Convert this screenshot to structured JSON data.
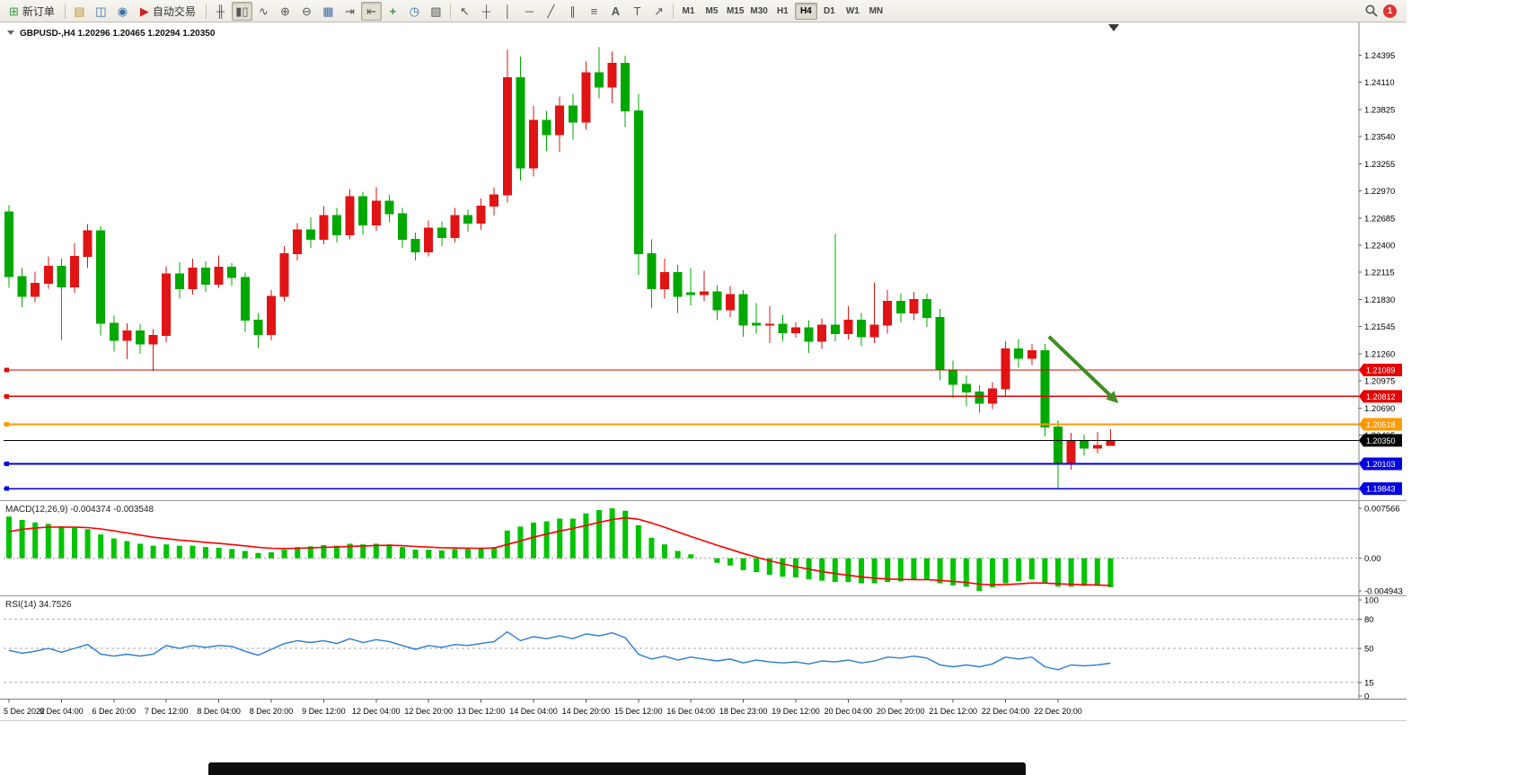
{
  "toolbar": {
    "new_order": "新订单",
    "autotrade": "自动交易",
    "timeframes": [
      "M1",
      "M5",
      "M15",
      "M30",
      "H1",
      "H4",
      "D1",
      "W1",
      "MN"
    ],
    "active_timeframe": "H4",
    "notification_count": "1",
    "icons": {
      "new_order": "⊞",
      "market_watch": "▤",
      "data_window": "◫",
      "navigator": "◉",
      "autotrade": "▶",
      "bar_chart": "╫",
      "candle_chart": "▮▯",
      "line_chart": "∿",
      "zoom_in": "⊕",
      "zoom_out": "⊖",
      "tile_windows": "▦",
      "auto_scroll": "⇥",
      "chart_shift": "⇤",
      "indicators": "+",
      "periods": "◷",
      "templates": "▧",
      "cursor": "↖",
      "crosshair": "┼",
      "vline": "│",
      "hline": "─",
      "trendline": "╱",
      "channel": "∥",
      "fibonacci": "≡",
      "text": "A",
      "label": "T",
      "arrows": "↗"
    }
  },
  "chart_data": {
    "type": "candlestick",
    "symbol_period": "GBPUSD-,H4",
    "ohlc_text": "1.20296 1.20465 1.20294 1.20350",
    "current": {
      "open": 1.20296,
      "high": 1.20465,
      "low": 1.20294,
      "close": 1.2035
    },
    "colors": {
      "bull": "#e01414",
      "bear": "#00a800",
      "macd_hist": "#00c400",
      "macd_signal": "#ff0000",
      "rsi": "#2b7bd4",
      "arrow": "#3e8e23",
      "line_red": "#e60000",
      "line_orange": "#ff9a00",
      "line_blue": "#0000e0",
      "line_black": "#000000"
    },
    "price_axis_labels": [
      "1.24395",
      "1.24110",
      "1.23825",
      "1.23540",
      "1.23255",
      "1.22970",
      "1.22685",
      "1.22400",
      "1.22115",
      "1.21830",
      "1.21545",
      "1.21260",
      "1.20975",
      "1.20690",
      "1.20405",
      "1.20120",
      "1.19835"
    ],
    "h_lines": [
      {
        "price": 1.21089,
        "label": "1.21089",
        "color": "#e60000",
        "width": 1.4,
        "handle": true
      },
      {
        "price": 1.20812,
        "label": "1.20812",
        "color": "#e60000",
        "width": 1.4,
        "handle": true
      },
      {
        "price": 1.20518,
        "label": "1.20518",
        "color": "#ff9a00",
        "width": 2.4,
        "handle": true
      },
      {
        "price": 1.2035,
        "label": "1.20350",
        "color": "#000000",
        "width": 1,
        "handle": false
      },
      {
        "price": 1.20103,
        "label": "1.20103",
        "color": "#0000e0",
        "width": 1.6,
        "handle": true
      },
      {
        "price": 1.19843,
        "label": "1.19843",
        "color": "#0000e0",
        "width": 1.6,
        "handle": true
      }
    ],
    "x_labels": [
      "5 Dec 2022",
      "6 Dec 04:00",
      "6 Dec 20:00",
      "7 Dec 12:00",
      "8 Dec 04:00",
      "8 Dec 20:00",
      "9 Dec 12:00",
      "12 Dec 04:00",
      "12 Dec 20:00",
      "13 Dec 12:00",
      "14 Dec 04:00",
      "14 Dec 20:00",
      "15 Dec 12:00",
      "16 Dec 04:00",
      "18 Dec 23:00",
      "19 Dec 12:00",
      "20 Dec 04:00",
      "20 Dec 20:00",
      "21 Dec 12:00",
      "22 Dec 04:00",
      "22 Dec 20:00"
    ],
    "x_label_step": 4,
    "candles": [
      [
        1.2275,
        1.2282,
        1.2195,
        1.2207
      ],
      [
        1.2207,
        1.2216,
        1.2175,
        1.2186
      ],
      [
        1.2186,
        1.2212,
        1.218,
        1.22
      ],
      [
        1.22,
        1.2228,
        1.2194,
        1.2218
      ],
      [
        1.2218,
        1.2226,
        1.214,
        1.2196
      ],
      [
        1.2196,
        1.2242,
        1.219,
        1.2228
      ],
      [
        1.2228,
        1.2262,
        1.2216,
        1.2255
      ],
      [
        1.2255,
        1.226,
        1.2145,
        1.2158
      ],
      [
        1.2158,
        1.2166,
        1.2128,
        1.214
      ],
      [
        1.214,
        1.2158,
        1.212,
        1.215
      ],
      [
        1.215,
        1.2157,
        1.2126,
        1.2136
      ],
      [
        1.2136,
        1.2152,
        1.2108,
        1.2145
      ],
      [
        1.2145,
        1.2218,
        1.2138,
        1.221
      ],
      [
        1.221,
        1.2222,
        1.2184,
        1.2194
      ],
      [
        1.2194,
        1.2226,
        1.2188,
        1.2216
      ],
      [
        1.2216,
        1.2223,
        1.2191,
        1.2199
      ],
      [
        1.2199,
        1.2229,
        1.2195,
        1.2217
      ],
      [
        1.2217,
        1.2221,
        1.2197,
        1.2206
      ],
      [
        1.2206,
        1.2211,
        1.2149,
        1.2161
      ],
      [
        1.2161,
        1.2169,
        1.2132,
        1.2146
      ],
      [
        1.2146,
        1.2193,
        1.214,
        1.2186
      ],
      [
        1.2186,
        1.2239,
        1.2181,
        1.2231
      ],
      [
        1.2231,
        1.2263,
        1.2224,
        1.2256
      ],
      [
        1.2256,
        1.2269,
        1.2237,
        1.2246
      ],
      [
        1.2246,
        1.2281,
        1.2241,
        1.2271
      ],
      [
        1.2271,
        1.2279,
        1.2243,
        1.2251
      ],
      [
        1.2251,
        1.2299,
        1.2246,
        1.2291
      ],
      [
        1.2291,
        1.2296,
        1.2251,
        1.2261
      ],
      [
        1.2261,
        1.2301,
        1.2255,
        1.2286
      ],
      [
        1.2286,
        1.2293,
        1.2264,
        1.2273
      ],
      [
        1.2273,
        1.2279,
        1.2237,
        1.2246
      ],
      [
        1.2246,
        1.2253,
        1.2224,
        1.2233
      ],
      [
        1.2233,
        1.2266,
        1.2228,
        1.2258
      ],
      [
        1.2258,
        1.2265,
        1.2239,
        1.2248
      ],
      [
        1.2248,
        1.2279,
        1.2243,
        1.2271
      ],
      [
        1.2271,
        1.2277,
        1.2254,
        1.2263
      ],
      [
        1.2263,
        1.2289,
        1.2256,
        1.2281
      ],
      [
        1.2281,
        1.2301,
        1.2271,
        1.2293
      ],
      [
        1.2293,
        1.2445,
        1.2285,
        1.2416
      ],
      [
        1.2416,
        1.2438,
        1.2308,
        1.2321
      ],
      [
        1.2321,
        1.2386,
        1.2312,
        1.2371
      ],
      [
        1.2371,
        1.2381,
        1.2339,
        1.2356
      ],
      [
        1.2356,
        1.2396,
        1.2338,
        1.2386
      ],
      [
        1.2386,
        1.2399,
        1.2351,
        1.2369
      ],
      [
        1.2369,
        1.2433,
        1.2361,
        1.2421
      ],
      [
        1.2421,
        1.2448,
        1.2394,
        1.2406
      ],
      [
        1.2406,
        1.2443,
        1.2389,
        1.2431
      ],
      [
        1.2431,
        1.2439,
        1.2364,
        1.2381
      ],
      [
        1.2381,
        1.2399,
        1.2209,
        1.2231
      ],
      [
        1.2231,
        1.2246,
        1.2174,
        1.2194
      ],
      [
        1.2194,
        1.2226,
        1.2184,
        1.2211
      ],
      [
        1.2211,
        1.2219,
        1.2169,
        1.2186
      ],
      [
        1.219,
        1.2216,
        1.2177,
        1.2188
      ],
      [
        1.2188,
        1.2213,
        1.2181,
        1.2191
      ],
      [
        1.2191,
        1.2198,
        1.2161,
        1.2172
      ],
      [
        1.2172,
        1.2197,
        1.2164,
        1.2188
      ],
      [
        1.2188,
        1.2193,
        1.2144,
        1.2156
      ],
      [
        1.2158,
        1.2179,
        1.2147,
        1.2156
      ],
      [
        1.2156,
        1.2176,
        1.2137,
        1.2157
      ],
      [
        1.2157,
        1.2167,
        1.2139,
        1.2148
      ],
      [
        1.2148,
        1.2159,
        1.2143,
        1.2153
      ],
      [
        1.2153,
        1.2161,
        1.2127,
        1.2139
      ],
      [
        1.2139,
        1.2163,
        1.2131,
        1.2156
      ],
      [
        1.2156,
        1.2252,
        1.2139,
        1.2147
      ],
      [
        1.2147,
        1.2176,
        1.2141,
        1.2161
      ],
      [
        1.2161,
        1.2169,
        1.2134,
        1.2144
      ],
      [
        1.2144,
        1.2201,
        1.2137,
        1.2156
      ],
      [
        1.2156,
        1.2193,
        1.2147,
        1.2181
      ],
      [
        1.2181,
        1.2189,
        1.2159,
        1.2169
      ],
      [
        1.2169,
        1.2191,
        1.2161,
        1.2183
      ],
      [
        1.2183,
        1.2189,
        1.2154,
        1.2164
      ],
      [
        1.2164,
        1.2173,
        1.2098,
        1.2109
      ],
      [
        1.2109,
        1.2119,
        1.2079,
        1.2094
      ],
      [
        1.2094,
        1.2103,
        1.2071,
        1.2086
      ],
      [
        1.2086,
        1.2093,
        1.2064,
        1.2074
      ],
      [
        1.2074,
        1.2096,
        1.2068,
        1.2089
      ],
      [
        1.2089,
        1.2139,
        1.2081,
        1.2131
      ],
      [
        1.2131,
        1.2141,
        1.2111,
        1.2121
      ],
      [
        1.2121,
        1.2136,
        1.2114,
        1.2129
      ],
      [
        1.2129,
        1.2136,
        1.2039,
        1.2049
      ],
      [
        1.2049,
        1.2056,
        1.1984,
        1.2011
      ],
      [
        1.2011,
        1.2043,
        1.2004,
        1.2035
      ],
      [
        1.2035,
        1.2041,
        1.2019,
        1.2027
      ],
      [
        1.2027,
        1.2044,
        1.2021,
        1.20296
      ],
      [
        1.20296,
        1.20465,
        1.20294,
        1.2035
      ]
    ],
    "arrow": {
      "from_index": 79.3,
      "from_price": 1.2144,
      "to_index": 84.6,
      "to_price": 1.2074,
      "color": "#3e8e23"
    },
    "macd": {
      "label": "MACD(12,26,9)",
      "value1": "-0.004374",
      "value2": "-0.003548",
      "axis": [
        "0.007566",
        "0.00",
        "-0.004943"
      ],
      "max": 0.007566,
      "min": -0.004943,
      "histogram": [
        0.0063,
        0.0058,
        0.0054,
        0.0052,
        0.0048,
        0.0046,
        0.0044,
        0.0036,
        0.003,
        0.0026,
        0.0022,
        0.0019,
        0.0021,
        0.0019,
        0.0019,
        0.0017,
        0.0016,
        0.0014,
        0.0011,
        0.0008,
        0.0009,
        0.0013,
        0.0017,
        0.0018,
        0.002,
        0.0019,
        0.0022,
        0.0021,
        0.0022,
        0.0021,
        0.0017,
        0.0013,
        0.0013,
        0.0012,
        0.0014,
        0.0014,
        0.0015,
        0.0017,
        0.0042,
        0.0048,
        0.0054,
        0.0056,
        0.006,
        0.006,
        0.0068,
        0.0073,
        0.007566,
        0.0072,
        0.005,
        0.0031,
        0.0021,
        0.0011,
        0.0006,
        0,
        -0.0007,
        -0.0011,
        -0.0018,
        -0.0021,
        -0.0025,
        -0.0028,
        -0.0029,
        -0.0032,
        -0.0034,
        -0.0036,
        -0.0036,
        -0.0038,
        -0.0038,
        -0.0036,
        -0.0035,
        -0.0033,
        -0.0033,
        -0.0038,
        -0.0041,
        -0.0043,
        -0.004943,
        -0.0044,
        -0.0038,
        -0.0035,
        -0.0032,
        -0.0038,
        -0.0043,
        -0.0043,
        -0.0042,
        -0.0042,
        -0.004374
      ]
    },
    "rsi": {
      "label": "RSI(14)",
      "value": "34.7526",
      "axis": [
        "100",
        "80",
        "50",
        "15",
        "0"
      ],
      "levels": [
        80,
        50,
        15
      ],
      "values": [
        48,
        45,
        47,
        50,
        46,
        50,
        54,
        44,
        42,
        44,
        42,
        44,
        53,
        50,
        53,
        51,
        53,
        52,
        47,
        43,
        49,
        55,
        58,
        56,
        58,
        55,
        60,
        56,
        59,
        57,
        53,
        49,
        53,
        51,
        54,
        53,
        55,
        57,
        67,
        58,
        62,
        60,
        63,
        60,
        65,
        63,
        66,
        61,
        44,
        39,
        42,
        38,
        41,
        39,
        37,
        39,
        35,
        38,
        36,
        35,
        36,
        34,
        37,
        36,
        38,
        35,
        37,
        41,
        40,
        42,
        40,
        33,
        31,
        33,
        31,
        34,
        41,
        39,
        41,
        31,
        28,
        33,
        32,
        33,
        34.7526
      ]
    }
  }
}
